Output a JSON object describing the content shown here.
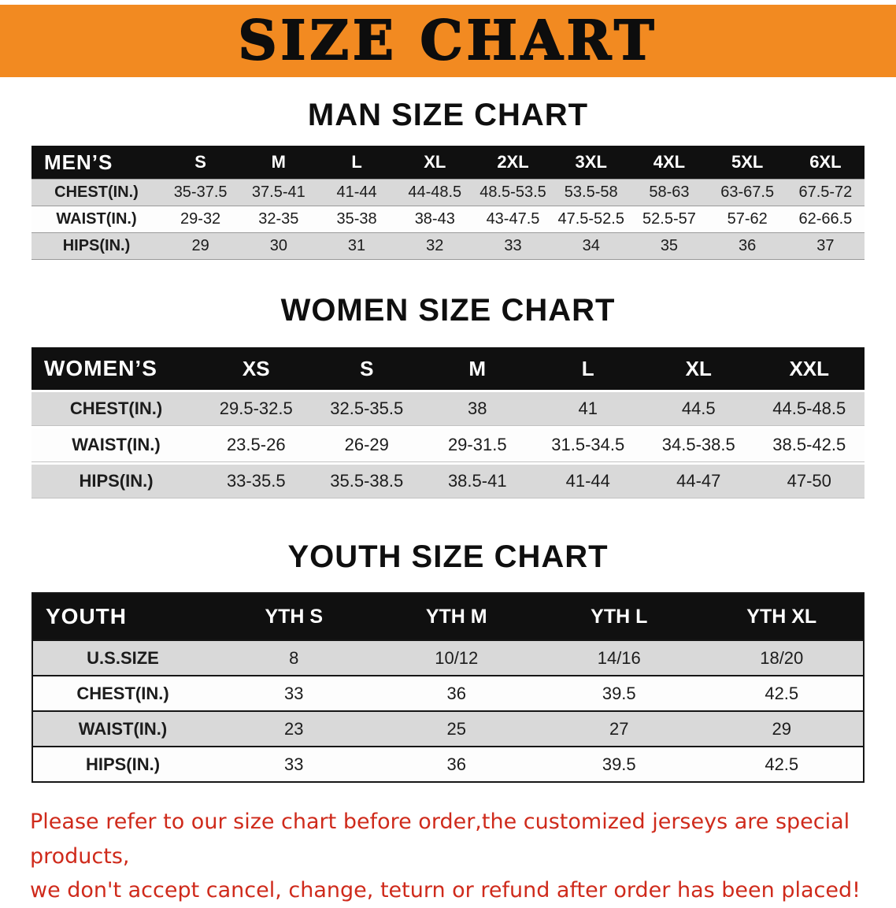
{
  "banner": {
    "title": "SIZE CHART"
  },
  "colors": {
    "banner_bg": "#F28A21",
    "table_header_bg": "#101010",
    "row_shade": "#d9d9d9",
    "notice_text": "#cf2a1b"
  },
  "men": {
    "heading": "MAN SIZE CHART",
    "header": [
      "MEN’S",
      "S",
      "M",
      "L",
      "XL",
      "2XL",
      "3XL",
      "4XL",
      "5XL",
      "6XL"
    ],
    "rows": [
      {
        "label": "CHEST(IN.)",
        "values": [
          "35-37.5",
          "37.5-41",
          "41-44",
          "44-48.5",
          "48.5-53.5",
          "53.5-58",
          "58-63",
          "63-67.5",
          "67.5-72"
        ]
      },
      {
        "label": "WAIST(IN.)",
        "values": [
          "29-32",
          "32-35",
          "35-38",
          "38-43",
          "43-47.5",
          "47.5-52.5",
          "52.5-57",
          "57-62",
          "62-66.5"
        ]
      },
      {
        "label": "HIPS(IN.)",
        "values": [
          "29",
          "30",
          "31",
          "32",
          "33",
          "34",
          "35",
          "36",
          "37"
        ]
      }
    ]
  },
  "women": {
    "heading": "WOMEN SIZE CHART",
    "header": [
      "WOMEN’S",
      "XS",
      "S",
      "M",
      "L",
      "XL",
      "XXL"
    ],
    "rows": [
      {
        "label": "CHEST(IN.)",
        "values": [
          "29.5-32.5",
          "32.5-35.5",
          "38",
          "41",
          "44.5",
          "44.5-48.5"
        ]
      },
      {
        "label": "WAIST(IN.)",
        "values": [
          "23.5-26",
          "26-29",
          "29-31.5",
          "31.5-34.5",
          "34.5-38.5",
          "38.5-42.5"
        ]
      },
      {
        "label": "HIPS(IN.)",
        "values": [
          "33-35.5",
          "35.5-38.5",
          "38.5-41",
          "41-44",
          "44-47",
          "47-50"
        ]
      }
    ]
  },
  "youth": {
    "heading": "YOUTH SIZE CHART",
    "header": [
      "YOUTH",
      "YTH S",
      "YTH M",
      "YTH L",
      "YTH XL"
    ],
    "rows": [
      {
        "label": "U.S.SIZE",
        "values": [
          "8",
          "10/12",
          "14/16",
          "18/20"
        ]
      },
      {
        "label": "CHEST(IN.)",
        "values": [
          "33",
          "36",
          "39.5",
          "42.5"
        ]
      },
      {
        "label": "WAIST(IN.)",
        "values": [
          "23",
          "25",
          "27",
          "29"
        ]
      },
      {
        "label": "HIPS(IN.)",
        "values": [
          "33",
          "36",
          "39.5",
          "42.5"
        ]
      }
    ]
  },
  "notice": {
    "line1": "Please refer to our size chart before order,the customized jerseys are special products,",
    "line2": "we don't accept cancel, change, teturn or refund after order has been placed!"
  }
}
